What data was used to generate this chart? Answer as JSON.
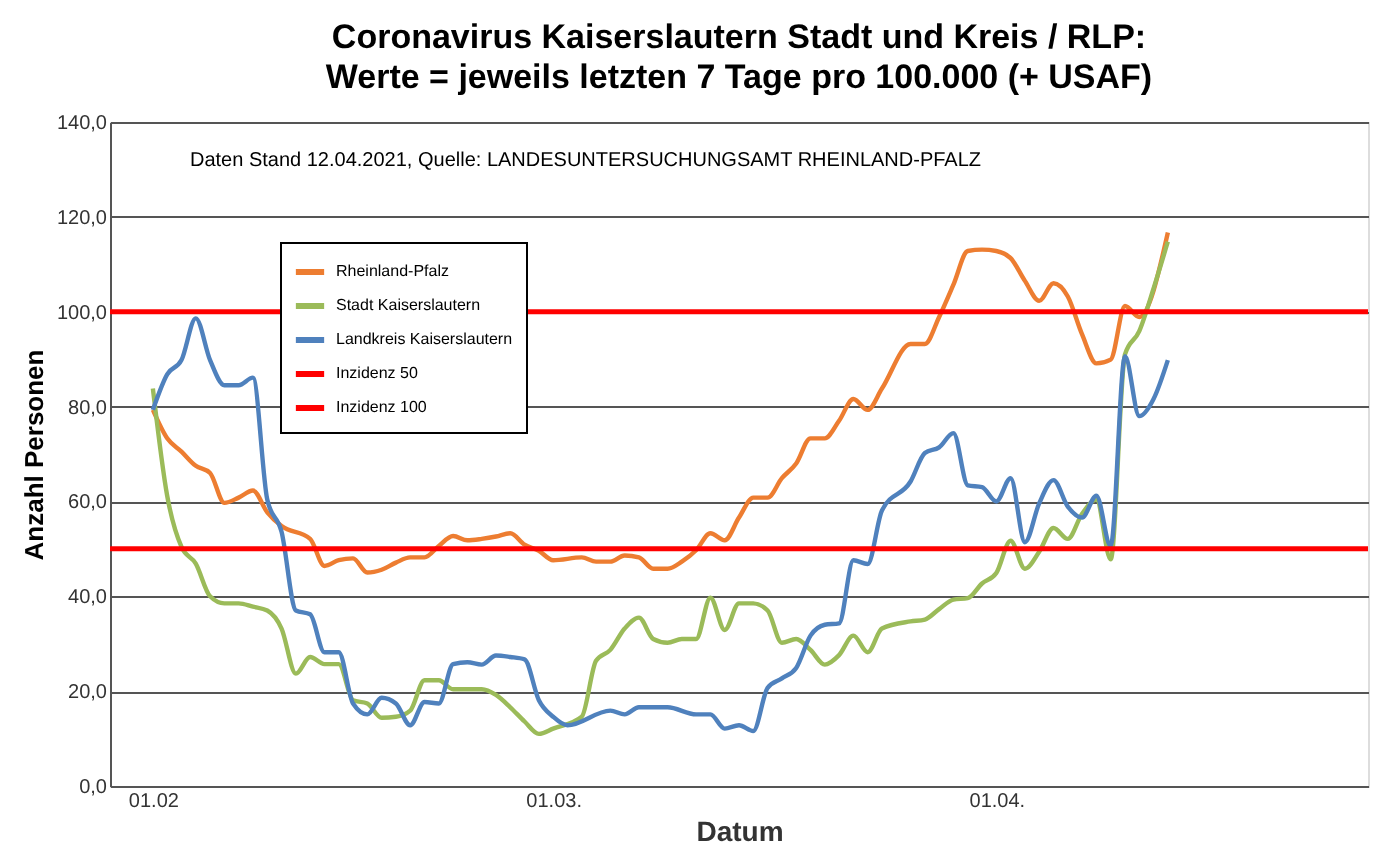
{
  "chart_data": {
    "type": "line",
    "title": "Coronavirus Kaiserslautern Stadt und Kreis / RLP:",
    "subtitle": "Werte = jeweils letzten 7 Tage pro 100.000 (+ USAF)",
    "xlabel": "Datum",
    "ylabel": "Anzahl Personen",
    "annotations": [
      "Daten Stand 12.04.2021, Quelle: LANDESUNTERSUCHUNGSAMT RHEINLAND-PFALZ"
    ],
    "xlim": [
      "2021-01-29",
      "2021-04-27"
    ],
    "xticks": [
      {
        "value": "2021-02-01",
        "label": "01.02"
      },
      {
        "value": "2021-03-01",
        "label": "01.03."
      },
      {
        "value": "2021-04-01",
        "label": "01.04."
      }
    ],
    "ylim": [
      0,
      140
    ],
    "yticks": [
      {
        "value": 0,
        "label": "0,0"
      },
      {
        "value": 20,
        "label": "20,0"
      },
      {
        "value": 40,
        "label": "40,0"
      },
      {
        "value": 60,
        "label": "60,0"
      },
      {
        "value": 80,
        "label": "80,0"
      },
      {
        "value": 100,
        "label": "100,0"
      },
      {
        "value": 120,
        "label": "120,0"
      },
      {
        "value": 140,
        "label": "140,0"
      }
    ],
    "grid": "y",
    "legend": "top left",
    "marker": "none",
    "line_style": "solid",
    "series": [
      {
        "name": "Rheinland-Pfalz",
        "color": "#ed7d31",
        "x": [
          "2021-02-01",
          "2021-02-02",
          "2021-02-03",
          "2021-02-04",
          "2021-02-05",
          "2021-02-06",
          "2021-02-07",
          "2021-02-08",
          "2021-02-09",
          "2021-02-10",
          "2021-02-12",
          "2021-02-13",
          "2021-02-14",
          "2021-02-15",
          "2021-02-16",
          "2021-02-17",
          "2021-02-18",
          "2021-02-19",
          "2021-02-20",
          "2021-02-21",
          "2021-02-22",
          "2021-02-23",
          "2021-02-24",
          "2021-02-25",
          "2021-02-26",
          "2021-02-27",
          "2021-02-28",
          "2021-03-01",
          "2021-03-03",
          "2021-03-04",
          "2021-03-05",
          "2021-03-06",
          "2021-03-07",
          "2021-03-08",
          "2021-03-09",
          "2021-03-10",
          "2021-03-11",
          "2021-03-12",
          "2021-03-13",
          "2021-03-14",
          "2021-03-15",
          "2021-03-16",
          "2021-03-17",
          "2021-03-18",
          "2021-03-19",
          "2021-03-20",
          "2021-03-21",
          "2021-03-22",
          "2021-03-23",
          "2021-03-24",
          "2021-03-26",
          "2021-03-27",
          "2021-03-28",
          "2021-03-29",
          "2021-03-30",
          "2021-03-31",
          "2021-04-01",
          "2021-04-02",
          "2021-04-03",
          "2021-04-04",
          "2021-04-05",
          "2021-04-06",
          "2021-04-07",
          "2021-04-08",
          "2021-04-09",
          "2021-04-10",
          "2021-04-11",
          "2021-04-13"
        ],
        "values": [
          79.3,
          73.3,
          70.5,
          67.5,
          66,
          59.7,
          60.8,
          62.3,
          57.7,
          54.8,
          52.1,
          46.4,
          47.6,
          48,
          45,
          45.6,
          47.1,
          48.2,
          48.2,
          50.6,
          52.7,
          51.8,
          52.1,
          52.6,
          53.3,
          50.9,
          49.6,
          47.6,
          48.2,
          47.3,
          47.3,
          48.6,
          48.2,
          45.8,
          45.8,
          47.3,
          49.7,
          53.3,
          51.8,
          56.6,
          60.8,
          60.8,
          64.9,
          68,
          73.3,
          73.3,
          77,
          81.6,
          79.3,
          83.8,
          93.2,
          93.2,
          98.9,
          105.7,
          112.8,
          113.1,
          112.8,
          111.3,
          106.5,
          102.3,
          106,
          103.2,
          95.2,
          89.1,
          89.9,
          101.2,
          98.9,
          116.7
        ]
      },
      {
        "name": "Stadt Kaiserslautern",
        "color": "#9bbb59",
        "x": [
          "2021-02-01",
          "2021-02-02",
          "2021-02-03",
          "2021-02-04",
          "2021-02-05",
          "2021-02-06",
          "2021-02-07",
          "2021-02-08",
          "2021-02-09",
          "2021-02-10",
          "2021-02-11",
          "2021-02-12",
          "2021-02-13",
          "2021-02-14",
          "2021-02-15",
          "2021-02-16",
          "2021-02-17",
          "2021-02-18",
          "2021-02-19",
          "2021-02-20",
          "2021-02-21",
          "2021-02-22",
          "2021-02-23",
          "2021-02-24",
          "2021-02-25",
          "2021-02-26",
          "2021-02-27",
          "2021-02-28",
          "2021-03-01",
          "2021-03-03",
          "2021-03-04",
          "2021-03-05",
          "2021-03-06",
          "2021-03-07",
          "2021-03-08",
          "2021-03-09",
          "2021-03-10",
          "2021-03-11",
          "2021-03-12",
          "2021-03-13",
          "2021-03-14",
          "2021-03-15",
          "2021-03-16",
          "2021-03-17",
          "2021-03-18",
          "2021-03-19",
          "2021-03-20",
          "2021-03-21",
          "2021-03-22",
          "2021-03-23",
          "2021-03-24",
          "2021-03-26",
          "2021-03-27",
          "2021-03-28",
          "2021-03-29",
          "2021-03-30",
          "2021-03-31",
          "2021-04-01",
          "2021-04-02",
          "2021-04-03",
          "2021-04-04",
          "2021-04-05",
          "2021-04-06",
          "2021-04-07",
          "2021-04-08",
          "2021-04-09",
          "2021-04-10",
          "2021-04-11",
          "2021-04-12",
          "2021-04-13"
        ],
        "values": [
          83.8,
          61.2,
          50.4,
          46.9,
          40,
          38.5,
          38.5,
          37.8,
          37,
          33.2,
          23.7,
          27.2,
          25.7,
          25.7,
          18.1,
          17.4,
          14.4,
          14.6,
          15.9,
          22.3,
          22.3,
          20.4,
          20.4,
          20.4,
          19.2,
          16.6,
          13.6,
          11,
          12.1,
          14.6,
          26.4,
          28.7,
          33.2,
          35.5,
          31,
          30.2,
          31,
          31,
          39.7,
          32.9,
          38.5,
          38.5,
          37,
          30.2,
          31,
          28.7,
          25.6,
          27.6,
          31.7,
          28.2,
          33.2,
          34.7,
          35.1,
          37.3,
          39.3,
          39.6,
          42.7,
          44.9,
          51.7,
          45.8,
          49.4,
          54.4,
          52.1,
          57.4,
          60.4,
          47.8,
          91,
          95.9,
          104.9,
          114.8
        ]
      },
      {
        "name": "Landkreis Kaiserslautern",
        "color": "#4f81bd",
        "x": [
          "2021-02-01",
          "2021-02-02",
          "2021-02-03",
          "2021-02-04",
          "2021-02-05",
          "2021-02-06",
          "2021-02-07",
          "2021-02-08",
          "2021-02-09",
          "2021-02-10",
          "2021-02-11",
          "2021-02-12",
          "2021-02-13",
          "2021-02-14",
          "2021-02-15",
          "2021-02-16",
          "2021-02-17",
          "2021-02-18",
          "2021-02-19",
          "2021-02-20",
          "2021-02-21",
          "2021-02-22",
          "2021-02-23",
          "2021-02-24",
          "2021-02-25",
          "2021-02-26",
          "2021-02-27",
          "2021-02-28",
          "2021-03-01",
          "2021-03-02",
          "2021-03-05",
          "2021-03-06",
          "2021-03-07",
          "2021-03-09",
          "2021-03-11",
          "2021-03-12",
          "2021-03-13",
          "2021-03-14",
          "2021-03-15",
          "2021-03-16",
          "2021-03-17",
          "2021-03-18",
          "2021-03-19",
          "2021-03-20",
          "2021-03-21",
          "2021-03-22",
          "2021-03-23",
          "2021-03-24",
          "2021-03-26",
          "2021-03-27",
          "2021-03-28",
          "2021-03-29",
          "2021-03-30",
          "2021-03-31",
          "2021-04-01",
          "2021-04-02",
          "2021-04-03",
          "2021-04-04",
          "2021-04-05",
          "2021-04-06",
          "2021-04-07",
          "2021-04-08",
          "2021-04-09",
          "2021-04-10",
          "2021-04-11",
          "2021-04-12",
          "2021-04-13"
        ],
        "values": [
          79.3,
          86.8,
          89.8,
          98.6,
          89.8,
          84.5,
          84.5,
          86.1,
          60.4,
          53.6,
          37,
          36.2,
          28.2,
          28.2,
          17.4,
          15.1,
          18.6,
          17.4,
          12.8,
          17.7,
          17.4,
          25.7,
          26.1,
          25.6,
          27.5,
          27.2,
          26.7,
          18.1,
          14.6,
          12.8,
          15.9,
          15.1,
          16.6,
          16.6,
          15.1,
          15.1,
          12.1,
          12.8,
          11.6,
          20.7,
          22.7,
          24.9,
          31.7,
          34,
          34.3,
          47.6,
          46.8,
          58.1,
          64.2,
          70.2,
          71.4,
          74.4,
          63.4,
          63,
          60,
          64.9,
          51.4,
          59.6,
          64.5,
          58.9,
          56.6,
          61.2,
          50.6,
          90.6,
          78,
          81.6,
          89.8
        ]
      }
    ],
    "ref_lines": [
      {
        "axis": "y",
        "value": 50,
        "label": "Inzidenz 50",
        "color": "#ff0000"
      },
      {
        "axis": "y",
        "value": 100,
        "label": "Inzidenz 100",
        "color": "#ff0000"
      }
    ]
  }
}
